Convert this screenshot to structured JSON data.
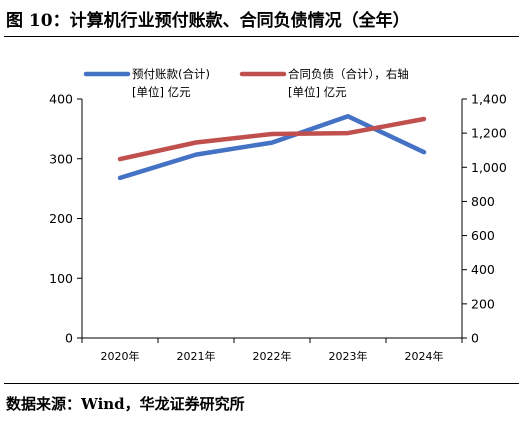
{
  "figure": {
    "title": "图 10：计算机行业预付账款、合同负债情况（全年）",
    "source": "数据来源：Wind，华龙证券研究所"
  },
  "chart_data": {
    "type": "line",
    "categories": [
      "2020年",
      "2021年",
      "2022年",
      "2023年",
      "2024年"
    ],
    "series": [
      {
        "name_line1": "预付账款(合计)",
        "name_line2": "[单位] 亿元",
        "axis": "left",
        "color": "#4472C4",
        "values": [
          268,
          307,
          327,
          371,
          311
        ]
      },
      {
        "name_line1": "合同负债（合计），右轴",
        "name_line2": "[单位] 亿元",
        "axis": "right",
        "color": "#C0504D",
        "values": [
          1048,
          1145,
          1195,
          1200,
          1283
        ]
      }
    ],
    "y_left": {
      "min": 0,
      "max": 400,
      "ticks": [
        "0",
        "100",
        "200",
        "300",
        "400"
      ]
    },
    "y_right": {
      "min": 0,
      "max": 1400,
      "ticks": [
        "0",
        "200",
        "400",
        "600",
        "800",
        "1,000",
        "1,200",
        "1,400"
      ]
    },
    "legend_position": "top",
    "grid": false
  }
}
